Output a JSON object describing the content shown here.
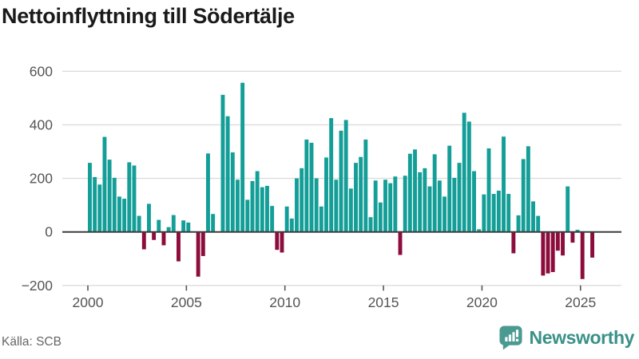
{
  "title": "Nettoinflyttning till Södertälje",
  "source": "Källa: SCB",
  "logo": {
    "text": "Newsworthy"
  },
  "colors": {
    "positive_bar": "#149e98",
    "negative_bar": "#8c0c3c",
    "title_text": "#1a1a1a",
    "axis_text": "#555555",
    "gridline": "#dcdcdc",
    "zero_line": "#3b3b3b",
    "tick_mark": "#555555",
    "source_text": "#666666",
    "logo_teal": "#3a9188",
    "logo_icon": "#4a9a91"
  },
  "chart_data": {
    "type": "bar",
    "title": "Nettoinflyttning till Södertälje",
    "frequency": "quarterly",
    "start": "2000 Q1",
    "end": "2025 Q3",
    "ylim": [
      -200,
      600
    ],
    "y_ticks": [
      -200,
      0,
      200,
      400,
      600
    ],
    "x_tick_years": [
      2000,
      2005,
      2010,
      2015,
      2020,
      2025
    ],
    "grid": "horizontal",
    "legend": "none",
    "series": [
      {
        "name": "Nettoinflyttning",
        "values": [
          258,
          205,
          177,
          355,
          270,
          202,
          132,
          124,
          260,
          248,
          60,
          -65,
          105,
          -30,
          45,
          -50,
          18,
          63,
          -110,
          43,
          35,
          0,
          -167,
          -90,
          293,
          67,
          0,
          512,
          432,
          297,
          195,
          557,
          120,
          190,
          227,
          167,
          172,
          97,
          -67,
          -77,
          95,
          50,
          200,
          238,
          345,
          333,
          200,
          95,
          278,
          425,
          195,
          378,
          418,
          162,
          258,
          280,
          345,
          55,
          192,
          110,
          195,
          182,
          207,
          -86,
          210,
          292,
          308,
          223,
          238,
          170,
          290,
          192,
          132,
          322,
          202,
          258,
          445,
          412,
          227,
          10,
          140,
          312,
          142,
          154,
          356,
          142,
          -80,
          62,
          272,
          320,
          114,
          60,
          -163,
          -155,
          -150,
          -70,
          -88,
          170,
          -40,
          8,
          -176,
          0,
          -96
        ]
      }
    ]
  }
}
